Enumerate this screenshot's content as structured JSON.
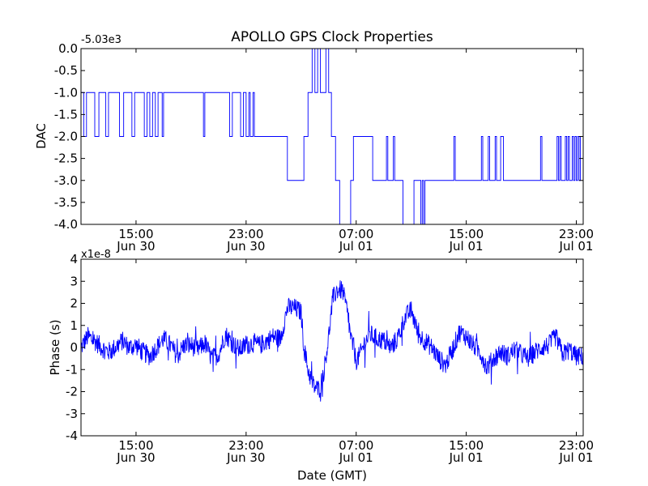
{
  "figure": {
    "title": "APOLLO GPS Clock Properties"
  },
  "chart_data": [
    {
      "type": "line",
      "ylabel": "DAC",
      "offset_label": "-5.03e3",
      "ylim": [
        -4.0,
        0.0
      ],
      "yticks": [
        0.0,
        -0.5,
        -1.0,
        -1.5,
        -2.0,
        -2.5,
        -3.0,
        -3.5,
        -4.0
      ],
      "ytick_labels": [
        "0.0",
        "-0.5",
        "-1.0",
        "-1.5",
        "-2.0",
        "-2.5",
        "-3.0",
        "-3.5",
        "-4.0"
      ],
      "xlim_hours": [
        11.0,
        47.5
      ],
      "xticks": [
        {
          "hour": 15,
          "time": "15:00",
          "date": "Jun 30"
        },
        {
          "hour": 23,
          "time": "23:00",
          "date": "Jun 30"
        },
        {
          "hour": 31,
          "time": "07:00",
          "date": "Jul 01"
        },
        {
          "hour": 39,
          "time": "15:00",
          "date": "Jul 01"
        },
        {
          "hour": 47,
          "time": "23:00",
          "date": "Jul 01"
        }
      ],
      "series": [
        {
          "color": "#0000ff",
          "style": "step",
          "points": [
            [
              11.0,
              -1
            ],
            [
              11.2,
              -2
            ],
            [
              11.4,
              -1
            ],
            [
              11.8,
              -1
            ],
            [
              12.0,
              -2
            ],
            [
              12.3,
              -1
            ],
            [
              12.6,
              -1
            ],
            [
              12.8,
              -2
            ],
            [
              13.0,
              -1
            ],
            [
              13.6,
              -1
            ],
            [
              13.8,
              -2
            ],
            [
              14.1,
              -1
            ],
            [
              14.5,
              -1
            ],
            [
              14.7,
              -2
            ],
            [
              14.9,
              -1
            ],
            [
              15.4,
              -1
            ],
            [
              15.6,
              -2
            ],
            [
              15.8,
              -1
            ],
            [
              16.0,
              -2
            ],
            [
              16.2,
              -1
            ],
            [
              16.4,
              -2
            ],
            [
              16.6,
              -1
            ],
            [
              16.9,
              -2
            ],
            [
              17.0,
              -1
            ],
            [
              19.8,
              -1
            ],
            [
              19.9,
              -2
            ],
            [
              20.0,
              -1
            ],
            [
              21.6,
              -1
            ],
            [
              21.8,
              -2
            ],
            [
              22.0,
              -1
            ],
            [
              22.4,
              -1
            ],
            [
              22.6,
              -2
            ],
            [
              22.8,
              -1
            ],
            [
              23.0,
              -2
            ],
            [
              23.2,
              -1
            ],
            [
              23.3,
              -2
            ],
            [
              23.5,
              -1
            ],
            [
              23.6,
              -2
            ],
            [
              25.8,
              -2
            ],
            [
              26.0,
              -3
            ],
            [
              27.0,
              -3
            ],
            [
              27.2,
              -2
            ],
            [
              27.5,
              -1
            ],
            [
              27.8,
              0
            ],
            [
              28.0,
              -1
            ],
            [
              28.2,
              0
            ],
            [
              28.4,
              -1
            ],
            [
              28.8,
              0
            ],
            [
              29.0,
              -1
            ],
            [
              29.2,
              -2
            ],
            [
              29.5,
              -3
            ],
            [
              29.8,
              -4
            ],
            [
              30.4,
              -4
            ],
            [
              30.6,
              -3
            ],
            [
              30.8,
              -2
            ],
            [
              32.0,
              -2
            ],
            [
              32.2,
              -3
            ],
            [
              33.0,
              -3
            ],
            [
              33.2,
              -2
            ],
            [
              33.3,
              -3
            ],
            [
              33.6,
              -3
            ],
            [
              33.7,
              -2
            ],
            [
              33.8,
              -3
            ],
            [
              34.2,
              -3
            ],
            [
              34.4,
              -4
            ],
            [
              35.0,
              -4
            ],
            [
              35.2,
              -3
            ],
            [
              35.6,
              -3
            ],
            [
              35.7,
              -4
            ],
            [
              35.8,
              -3
            ],
            [
              35.9,
              -4
            ],
            [
              36.0,
              -3
            ],
            [
              38.0,
              -3
            ],
            [
              38.1,
              -2
            ],
            [
              38.2,
              -3
            ],
            [
              40.0,
              -3
            ],
            [
              40.1,
              -2
            ],
            [
              40.2,
              -3
            ],
            [
              40.5,
              -3
            ],
            [
              40.6,
              -2
            ],
            [
              40.7,
              -3
            ],
            [
              41.0,
              -3
            ],
            [
              41.1,
              -2
            ],
            [
              41.2,
              -3
            ],
            [
              41.5,
              -2
            ],
            [
              41.7,
              -3
            ],
            [
              44.3,
              -3
            ],
            [
              44.4,
              -2
            ],
            [
              44.5,
              -3
            ],
            [
              45.5,
              -3
            ],
            [
              45.6,
              -2
            ],
            [
              45.7,
              -3
            ],
            [
              45.8,
              -2
            ],
            [
              45.9,
              -3
            ],
            [
              46.2,
              -2
            ],
            [
              46.3,
              -3
            ],
            [
              46.4,
              -2
            ],
            [
              46.5,
              -3
            ],
            [
              46.7,
              -2
            ],
            [
              46.8,
              -3
            ],
            [
              46.9,
              -2
            ],
            [
              47.0,
              -3
            ],
            [
              47.1,
              -2
            ],
            [
              47.2,
              -3
            ],
            [
              47.3,
              -2
            ],
            [
              47.5,
              -3
            ]
          ]
        }
      ]
    },
    {
      "type": "line",
      "ylabel": "Phase (s)",
      "offset_label": "x1e-8",
      "xlabel": "Date (GMT)",
      "ylim": [
        -4,
        4
      ],
      "yticks": [
        4,
        3,
        2,
        1,
        0,
        -1,
        -2,
        -3,
        -4
      ],
      "ytick_labels": [
        "4",
        "3",
        "2",
        "1",
        "0",
        "-1",
        "-2",
        "-3",
        "-4"
      ],
      "xlim_hours": [
        11.0,
        47.5
      ],
      "xticks": [
        {
          "hour": 15,
          "time": "15:00",
          "date": "Jun 30"
        },
        {
          "hour": 23,
          "time": "23:00",
          "date": "Jun 30"
        },
        {
          "hour": 31,
          "time": "07:00",
          "date": "Jul 01"
        },
        {
          "hour": 39,
          "time": "15:00",
          "date": "Jul 01"
        },
        {
          "hour": 47,
          "time": "23:00",
          "date": "Jul 01"
        }
      ],
      "series": [
        {
          "color": "#0000ff",
          "style": "noisy",
          "noise": 0.45,
          "points": [
            [
              11.0,
              0.0
            ],
            [
              11.5,
              0.5
            ],
            [
              12.0,
              0.3
            ],
            [
              12.5,
              0.0
            ],
            [
              13.0,
              -0.2
            ],
            [
              13.5,
              0.0
            ],
            [
              14.0,
              0.3
            ],
            [
              14.5,
              0.0
            ],
            [
              15.0,
              0.1
            ],
            [
              15.5,
              -0.2
            ],
            [
              16.0,
              -0.4
            ],
            [
              16.5,
              0.0
            ],
            [
              17.0,
              0.4
            ],
            [
              17.5,
              0.1
            ],
            [
              18.0,
              -0.4
            ],
            [
              18.5,
              0.1
            ],
            [
              19.0,
              0.1
            ],
            [
              19.5,
              -0.1
            ],
            [
              20.0,
              0.2
            ],
            [
              20.5,
              -0.5
            ],
            [
              21.0,
              -0.3
            ],
            [
              21.5,
              0.6
            ],
            [
              22.0,
              0.2
            ],
            [
              22.5,
              -0.1
            ],
            [
              23.0,
              0.1
            ],
            [
              23.5,
              0.2
            ],
            [
              24.0,
              0.1
            ],
            [
              24.5,
              0.3
            ],
            [
              25.0,
              0.5
            ],
            [
              25.5,
              0.4
            ],
            [
              26.0,
              1.8
            ],
            [
              26.5,
              1.8
            ],
            [
              27.0,
              1.6
            ],
            [
              27.2,
              0.0
            ],
            [
              27.5,
              -1.0
            ],
            [
              27.8,
              -1.6
            ],
            [
              28.0,
              -1.8
            ],
            [
              28.3,
              -1.9
            ],
            [
              28.6,
              -1.3
            ],
            [
              29.0,
              0.5
            ],
            [
              29.3,
              2.2
            ],
            [
              29.6,
              2.6
            ],
            [
              30.0,
              2.6
            ],
            [
              30.3,
              1.8
            ],
            [
              30.6,
              0.5
            ],
            [
              31.0,
              -0.6
            ],
            [
              31.3,
              -0.3
            ],
            [
              31.6,
              0.2
            ],
            [
              32.0,
              0.6
            ],
            [
              32.5,
              0.4
            ],
            [
              33.0,
              0.3
            ],
            [
              33.5,
              0.0
            ],
            [
              34.0,
              0.4
            ],
            [
              34.5,
              1.3
            ],
            [
              35.0,
              1.7
            ],
            [
              35.5,
              0.6
            ],
            [
              36.0,
              0.3
            ],
            [
              36.5,
              0.0
            ],
            [
              37.0,
              -0.5
            ],
            [
              37.5,
              -0.8
            ],
            [
              38.0,
              -0.1
            ],
            [
              38.5,
              0.7
            ],
            [
              39.0,
              0.5
            ],
            [
              39.5,
              0.1
            ],
            [
              40.0,
              -0.2
            ],
            [
              40.5,
              -0.9
            ],
            [
              41.0,
              -0.5
            ],
            [
              41.5,
              -0.2
            ],
            [
              42.0,
              -0.4
            ],
            [
              42.5,
              -0.1
            ],
            [
              43.0,
              -0.3
            ],
            [
              43.5,
              -0.5
            ],
            [
              44.0,
              -0.2
            ],
            [
              44.5,
              0.0
            ],
            [
              45.0,
              0.1
            ],
            [
              45.5,
              0.5
            ],
            [
              46.0,
              -0.3
            ],
            [
              46.5,
              -0.1
            ],
            [
              47.0,
              -0.4
            ],
            [
              47.5,
              -0.4
            ]
          ]
        }
      ]
    }
  ]
}
